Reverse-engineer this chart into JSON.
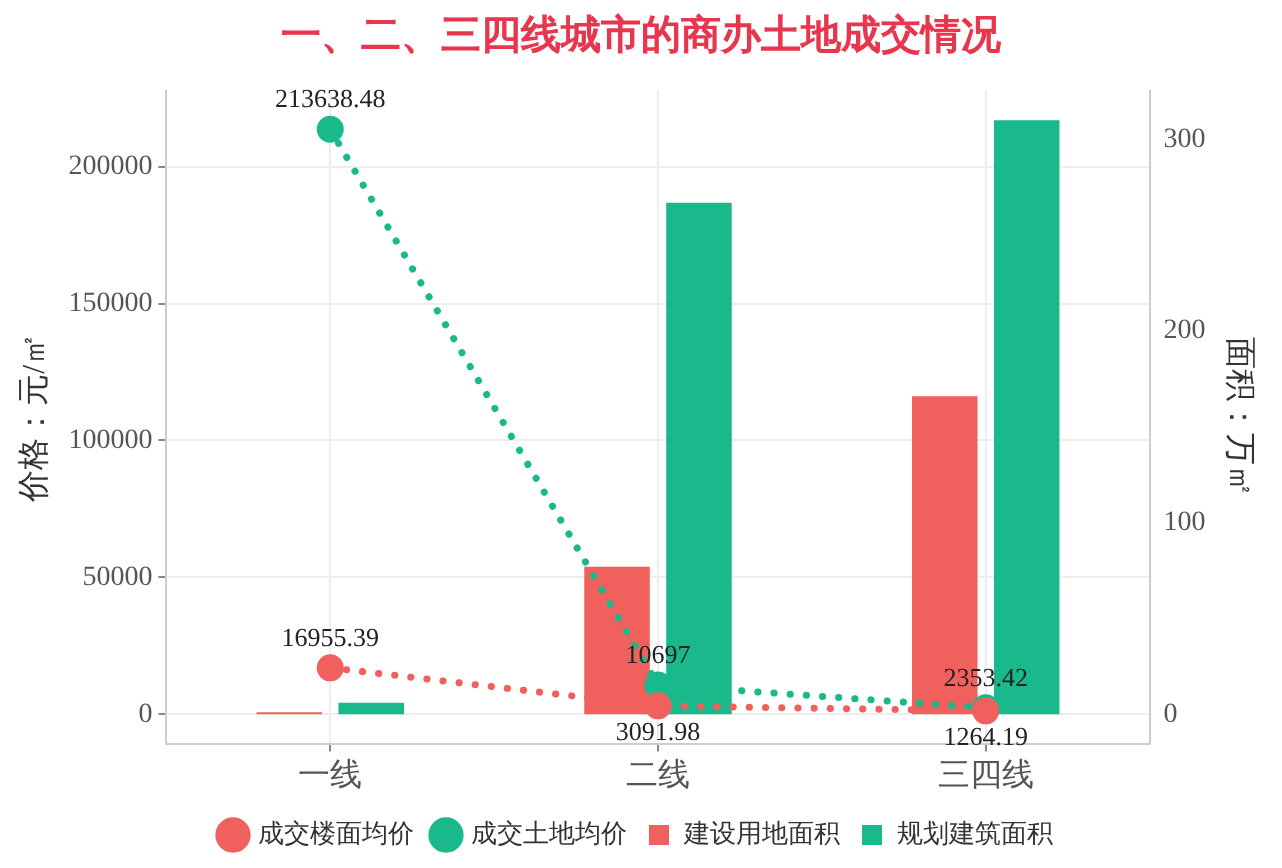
{
  "chart_data": {
    "type": "bar",
    "title": "一、二、三四线城市的商办土地成交情况",
    "categories": [
      "一线",
      "二线",
      "三四线"
    ],
    "ylabel": "价格：元/㎡",
    "y2label": "面积：万㎡",
    "ylim": [
      -10700,
      227700
    ],
    "yticks": [
      0,
      50000,
      100000,
      150000,
      200000
    ],
    "y2lim": [
      -15.3,
      325.4
    ],
    "y2ticks": [
      0,
      100,
      200,
      300
    ],
    "grid": true,
    "legend": "bottom",
    "marker": "circle",
    "line_style": "dotted",
    "series": [
      {
        "name": "成交楼面均价",
        "type": "line",
        "color": "#f0605d",
        "values": [
          16955.39,
          3091.98,
          1264.19
        ],
        "value_labels": [
          "16955.39",
          "3091.98",
          "1264.19"
        ]
      },
      {
        "name": "成交土地均价",
        "type": "line",
        "color": "#1ab98c",
        "values": [
          213638.48,
          10697,
          2353.42
        ],
        "value_labels": [
          "213638.48",
          "10697",
          "2353.42"
        ]
      },
      {
        "name": "建设用地面积",
        "axis": "y2",
        "color": "#f0605d",
        "values": [
          1,
          77,
          166
        ]
      },
      {
        "name": "规划建筑面积",
        "axis": "y2",
        "color": "#1ab98c",
        "values": [
          6,
          267,
          310
        ]
      }
    ]
  }
}
